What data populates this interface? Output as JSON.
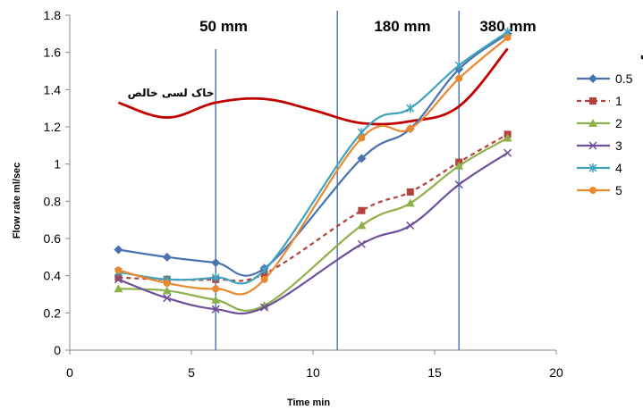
{
  "chart_data": {
    "type": "line",
    "xlabel": "Time   min",
    "ylabel": "Flow rate  ml/sec",
    "xlim": [
      0,
      20
    ],
    "ylim": [
      0,
      1.8
    ],
    "x_ticks": [
      "0",
      "5",
      "10",
      "15",
      "20"
    ],
    "y_ticks": [
      "0",
      "0.2",
      "0.4",
      "0.6",
      "0.8",
      "1",
      "1.2",
      "1.4",
      "1.6",
      "1.8"
    ],
    "legend_title": "درصد نانورس",
    "legend_position": "right",
    "grid": false,
    "x": [
      2,
      4,
      6,
      8,
      12,
      14,
      16,
      18
    ],
    "series": [
      {
        "name": "0.5",
        "values": [
          0.54,
          0.5,
          0.47,
          0.44,
          1.03,
          1.19,
          1.51,
          1.7
        ],
        "color": "#4a72b0",
        "marker": "diamond",
        "dashed": false
      },
      {
        "name": "1",
        "values": [
          0.39,
          0.38,
          0.38,
          0.41,
          0.75,
          0.85,
          1.01,
          1.16
        ],
        "color": "#b5413c",
        "marker": "square",
        "dashed": true
      },
      {
        "name": "2",
        "values": [
          0.33,
          0.32,
          0.27,
          0.24,
          0.67,
          0.79,
          0.99,
          1.14
        ],
        "color": "#8fb04a",
        "marker": "triangle",
        "dashed": false
      },
      {
        "name": "3",
        "values": [
          0.38,
          0.28,
          0.22,
          0.23,
          0.57,
          0.67,
          0.89,
          1.06
        ],
        "color": "#6e4f9a",
        "marker": "x",
        "dashed": false
      },
      {
        "name": "4",
        "values": [
          0.42,
          0.38,
          0.39,
          0.43,
          1.17,
          1.3,
          1.53,
          1.71
        ],
        "color": "#3ea3be",
        "marker": "star",
        "dashed": false
      },
      {
        "name": "5",
        "values": [
          0.43,
          0.36,
          0.33,
          0.38,
          1.14,
          1.19,
          1.46,
          1.68
        ],
        "color": "#e8892f",
        "marker": "circle",
        "dashed": false
      }
    ],
    "reference_curve": {
      "label": "خاک لسی خالص",
      "color": "#c00000",
      "x": [
        2,
        4,
        6,
        8,
        10,
        12,
        14,
        16,
        18
      ],
      "values": [
        1.33,
        1.25,
        1.33,
        1.35,
        1.29,
        1.22,
        1.23,
        1.31,
        1.62
      ]
    },
    "zones": [
      {
        "label": "50 mm",
        "x": 6
      },
      {
        "label": "180 mm",
        "x": 11
      },
      {
        "label": "380 mm",
        "x": 16
      }
    ]
  }
}
